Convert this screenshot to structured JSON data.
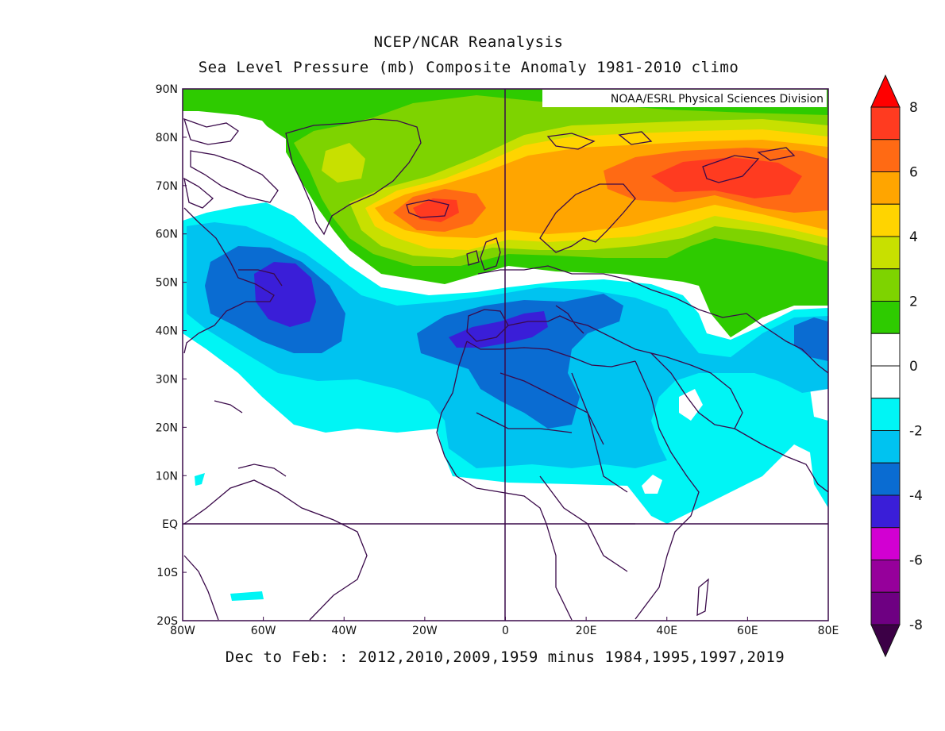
{
  "title_line1": "NCEP/NCAR Reanalysis",
  "title_line2": "Sea Level Pressure (mb) Composite Anomaly 1981-2010 climo",
  "inset_label": "NOAA/ESRL Physical Sciences Division",
  "caption": "Dec to Feb: : 2012,2010,2009,1959 minus 1984,1995,1997,2019",
  "lon_ticks": [
    "80W",
    "60W",
    "40W",
    "20W",
    "0",
    "20E",
    "40E",
    "60E",
    "80E"
  ],
  "lat_ticks": [
    "90N",
    "80N",
    "70N",
    "60N",
    "50N",
    "40N",
    "30N",
    "20N",
    "10N",
    "EQ",
    "10S",
    "20S"
  ],
  "colorbar": {
    "labels": [
      "8",
      "6",
      "4",
      "2",
      "0",
      "-2",
      "-4",
      "-6",
      "-8"
    ],
    "bins": [
      {
        "from": 7,
        "to": 8,
        "color": "#ff3b20"
      },
      {
        "from": 6,
        "to": 7,
        "color": "#ff6a14"
      },
      {
        "from": 5,
        "to": 6,
        "color": "#ffa500"
      },
      {
        "from": 4,
        "to": 5,
        "color": "#ffd400"
      },
      {
        "from": 3,
        "to": 4,
        "color": "#c8e000"
      },
      {
        "from": 2,
        "to": 3,
        "color": "#7ed300"
      },
      {
        "from": 1,
        "to": 2,
        "color": "#2ecb00"
      },
      {
        "from": 0,
        "to": 1,
        "color": "#ffffff"
      },
      {
        "from": -1,
        "to": 0,
        "color": "#ffffff"
      },
      {
        "from": -2,
        "to": -1,
        "color": "#00f5f5"
      },
      {
        "from": -3,
        "to": -2,
        "color": "#00c3f0"
      },
      {
        "from": -4,
        "to": -3,
        "color": "#0a6cd2"
      },
      {
        "from": -5,
        "to": -4,
        "color": "#3a1ed8"
      },
      {
        "from": -6,
        "to": -5,
        "color": "#d200d2"
      },
      {
        "from": -7,
        "to": -6,
        "color": "#96009b"
      },
      {
        "from": -8,
        "to": -7,
        "color": "#6e0082"
      }
    ],
    "over_color": "#ff0000",
    "under_color": "#3c0046"
  },
  "colors": {
    "land_outline": "#3a0a4a",
    "frame": "#3a0a4a"
  }
}
